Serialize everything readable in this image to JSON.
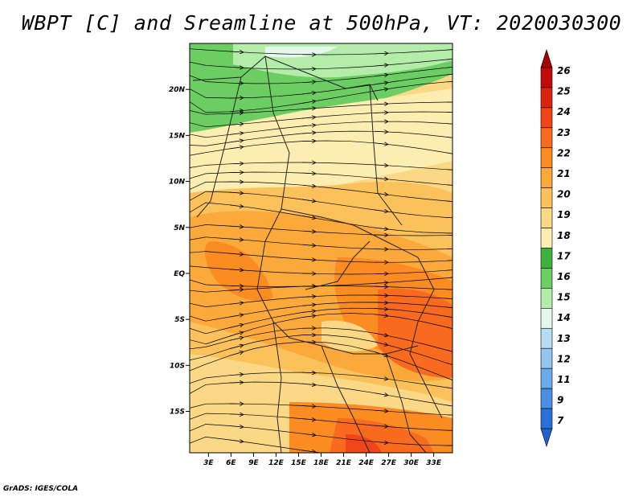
{
  "title": "WBPT [C] and Sreamline at 500hPa, VT: 2020030300",
  "credit": "GrADS: IGES/COLA",
  "map": {
    "lat_labels": [
      "20N",
      "15N",
      "10N",
      "5N",
      "EQ",
      "5S",
      "10S",
      "15S"
    ],
    "lat_values": [
      20,
      15,
      10,
      5,
      0,
      -5,
      -10,
      -15
    ],
    "lon_labels": [
      "3E",
      "6E",
      "9E",
      "12E",
      "15E",
      "18E",
      "21E",
      "24E",
      "27E",
      "30E",
      "33E"
    ],
    "lon_values": [
      3,
      6,
      9,
      12,
      15,
      18,
      21,
      24,
      27,
      30,
      33
    ],
    "lon_range": [
      0.5,
      35.5
    ],
    "lat_range": [
      -19.5,
      25
    ]
  },
  "colorbar": {
    "labels": [
      "26",
      "25",
      "24",
      "23",
      "22",
      "21",
      "20",
      "19",
      "18",
      "17",
      "16",
      "15",
      "14",
      "13",
      "12",
      "11",
      "9",
      "7"
    ],
    "colors": [
      "#c20a0a",
      "#de2212",
      "#ef4518",
      "#f86a1e",
      "#fb8c22",
      "#fba93a",
      "#fbc25c",
      "#fbd886",
      "#fceeb0",
      "#3cb13c",
      "#6ccd62",
      "#b4ecaa",
      "#e4f8ee",
      "#b6dcf6",
      "#92c6f0",
      "#6aaaea",
      "#4a8ee2",
      "#2a72d8"
    ],
    "top_arrow_color": "#a80000",
    "bottom_arrow_color": "#1e62d2"
  }
}
